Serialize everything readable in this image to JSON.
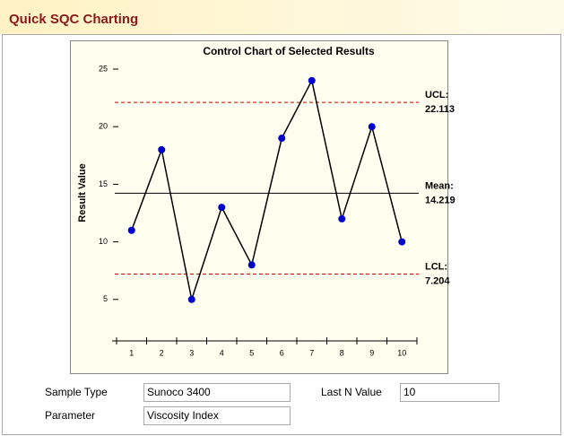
{
  "header": {
    "title": "Quick SQC Charting"
  },
  "chart_data": {
    "type": "line",
    "title": "Control Chart of Selected Results",
    "y_label": "Result Value",
    "categories": [
      "1",
      "2",
      "3",
      "4",
      "5",
      "6",
      "7",
      "8",
      "9",
      "10"
    ],
    "values": [
      11,
      18,
      5,
      13,
      8,
      19,
      24,
      12,
      20,
      10
    ],
    "color": "#0000cc",
    "line_color": "#000000",
    "ylim": [
      1.4,
      25
    ],
    "yticks": [
      5,
      10,
      15,
      20,
      25
    ],
    "reference_lines": [
      {
        "label": "UCL:",
        "value": 22.113,
        "color": "#cc0000",
        "style": "dashed"
      },
      {
        "label": "Mean:",
        "value": 14.219,
        "color": "#000000",
        "style": "solid"
      },
      {
        "label": "LCL:",
        "value": 7.204,
        "color": "#cc0000",
        "style": "dashed"
      }
    ]
  },
  "form": {
    "fields": [
      {
        "label": "Sample Type",
        "value": "Sunoco 3400"
      },
      {
        "label": "Last N Value",
        "value": "10"
      },
      {
        "label": "Parameter",
        "value": "Viscosity Index"
      }
    ]
  }
}
